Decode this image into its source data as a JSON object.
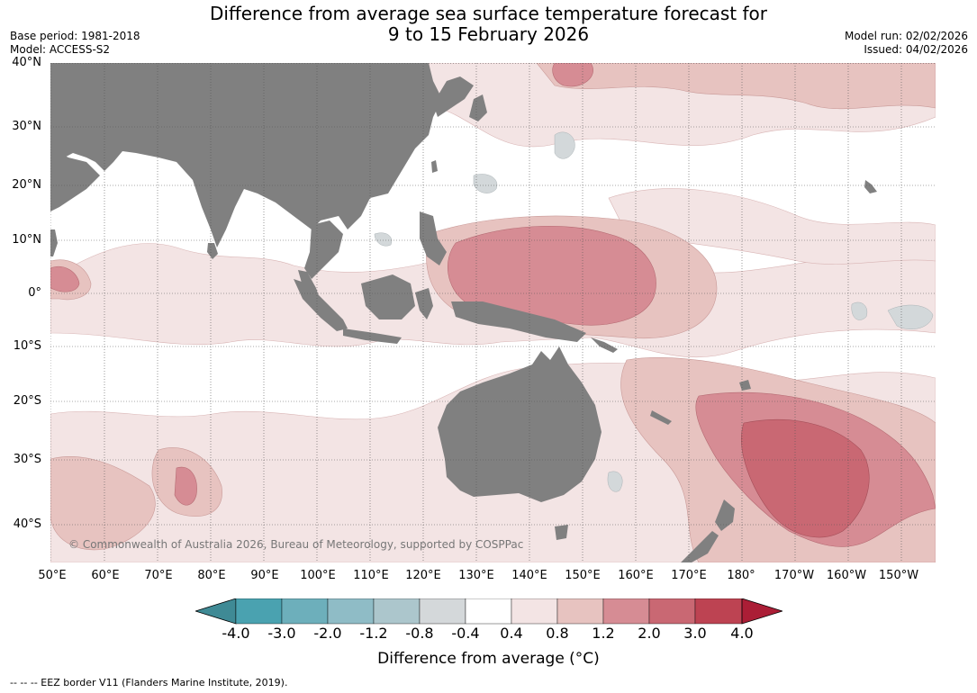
{
  "header": {
    "title_line1": "Difference from average sea surface temperature forecast for",
    "title_line2": "9 to 15 February 2026",
    "base_period": "Base period: 1981-2018",
    "model": "Model: ACCESS-S2",
    "model_run": "Model run: 02/02/2026",
    "issued": "Issued: 04/02/2026"
  },
  "map": {
    "lat_labels": [
      "40°N",
      "30°N",
      "20°N",
      "10°N",
      "0°",
      "10°S",
      "20°S",
      "30°S",
      "40°S"
    ],
    "lon_labels": [
      "50°E",
      "60°E",
      "70°E",
      "80°E",
      "90°E",
      "100°E",
      "110°E",
      "120°E",
      "130°E",
      "140°E",
      "150°E",
      "160°E",
      "170°E",
      "180°",
      "170°W",
      "160°W",
      "150°W"
    ],
    "copyright": "© Commonwealth of Australia 2026, Bureau of Meteorology, supported by COSPPac",
    "colors": {
      "land": "#808080",
      "ocean": "#ffffff",
      "anom_04_08": "#f3e4e4",
      "anom_08_12": "#e7c3c0",
      "anom_12_20": "#d68c94",
      "anom_20_30": "#c96873",
      "anom_30_40": "#bd4352",
      "neg_04_08": "#d3d8da"
    }
  },
  "colorbar": {
    "ticks": [
      "-4.0",
      "-3.0",
      "-2.0",
      "-1.2",
      "-0.8",
      "-0.4",
      "0.4",
      "0.8",
      "1.2",
      "2.0",
      "3.0",
      "4.0"
    ],
    "colors": [
      "#3f8a95",
      "#4aa2b0",
      "#6dafbb",
      "#8fbcc6",
      "#acc6cc",
      "#d4d8da",
      "#ffffff",
      "#f3e4e4",
      "#e7c3c0",
      "#d68c94",
      "#c96873",
      "#bd4352",
      "#ab1e36"
    ],
    "label": "Difference from average (°C)"
  },
  "footer": "--  --  -- EEZ border V11 (Flanders Marine Institute, 2019)."
}
